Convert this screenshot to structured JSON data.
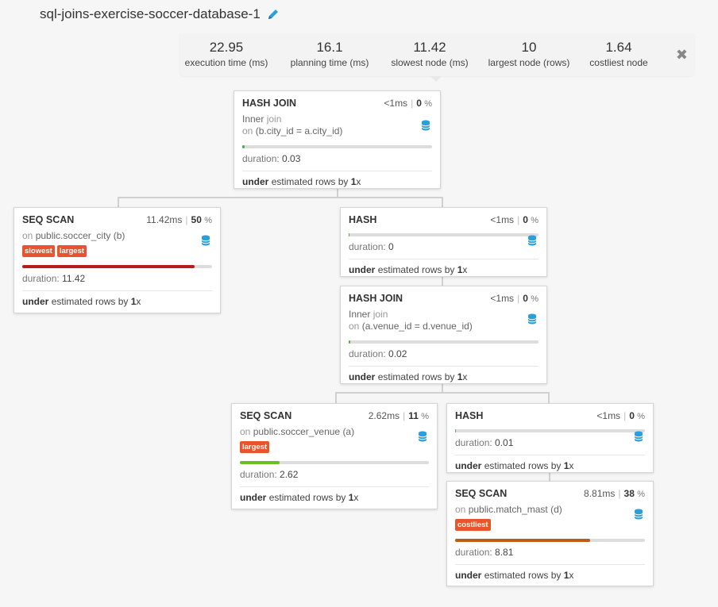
{
  "title": "sql-joins-exercise-soccer-database-1",
  "stats": [
    {
      "value": "22.95",
      "label": "execution time (ms)"
    },
    {
      "value": "16.1",
      "label": "planning time (ms)"
    },
    {
      "value": "11.42",
      "label": "slowest node (ms)"
    },
    {
      "value": "10",
      "label": "largest node (rows)"
    },
    {
      "value": "1.64",
      "label": "costliest node"
    }
  ],
  "nodes": [
    {
      "type": "HASH JOIN",
      "time": "<1",
      "unit": "ms",
      "pct": "0",
      "pct_unit": "%",
      "desc_main": "Inner",
      "desc_kw": "join",
      "desc2_kw": "on",
      "desc2": "(b.city_id = a.city_id)",
      "badges": [],
      "duration_label": "duration:",
      "duration": "0.03",
      "fill": 0.012,
      "fill_color": "#4caf50",
      "est_pre": "under",
      "est_mid": "estimated rows by",
      "est_val": "1",
      "est_x": "x"
    },
    {
      "type": "SEQ SCAN",
      "time": "11.42",
      "unit": "ms",
      "pct": "50",
      "pct_unit": "%",
      "desc_kw": "on",
      "desc_main": "public.soccer_city (b)",
      "badges": [
        "slowest",
        "largest"
      ],
      "duration_label": "duration:",
      "duration": "11.42",
      "fill": 0.91,
      "fill_color": "#b71c1c",
      "est_pre": "under",
      "est_mid": "estimated rows by",
      "est_val": "1",
      "est_x": "x"
    },
    {
      "type": "HASH",
      "time": "<1",
      "unit": "ms",
      "pct": "0",
      "pct_unit": "%",
      "badges": [],
      "duration_label": "duration:",
      "duration": "0",
      "fill": 0.005,
      "fill_color": "#4caf50",
      "est_pre": "under",
      "est_mid": "estimated rows by",
      "est_val": "1",
      "est_x": "x"
    },
    {
      "type": "HASH JOIN",
      "time": "<1",
      "unit": "ms",
      "pct": "0",
      "pct_unit": "%",
      "desc_main": "Inner",
      "desc_kw": "join",
      "desc2_kw": "on",
      "desc2": "(a.venue_id = d.venue_id)",
      "badges": [],
      "duration_label": "duration:",
      "duration": "0.02",
      "fill": 0.008,
      "fill_color": "#4caf50",
      "est_pre": "under",
      "est_mid": "estimated rows by",
      "est_val": "1",
      "est_x": "x"
    },
    {
      "type": "SEQ SCAN",
      "time": "2.62",
      "unit": "ms",
      "pct": "11",
      "pct_unit": "%",
      "desc_kw": "on",
      "desc_main": "public.soccer_venue (a)",
      "badges": [
        "largest"
      ],
      "duration_label": "duration:",
      "duration": "2.62",
      "fill": 0.21,
      "fill_color": "#6abf26",
      "est_pre": "under",
      "est_mid": "estimated rows by",
      "est_val": "1",
      "est_x": "x"
    },
    {
      "type": "HASH",
      "time": "<1",
      "unit": "ms",
      "pct": "0",
      "pct_unit": "%",
      "badges": [],
      "duration_label": "duration:",
      "duration": "0.01",
      "fill": 0.005,
      "fill_color": "#4caf50",
      "est_pre": "under",
      "est_mid": "estimated rows by",
      "est_val": "1",
      "est_x": "x"
    },
    {
      "type": "SEQ SCAN",
      "time": "8.81",
      "unit": "ms",
      "pct": "38",
      "pct_unit": "%",
      "desc_kw": "on",
      "desc_main": "public.match_mast (d)",
      "badges": [
        "costliest"
      ],
      "duration_label": "duration:",
      "duration": "8.81",
      "fill": 0.71,
      "fill_color": "#bf5b16",
      "est_pre": "under",
      "est_mid": "estimated rows by",
      "est_val": "1",
      "est_x": "x"
    }
  ]
}
